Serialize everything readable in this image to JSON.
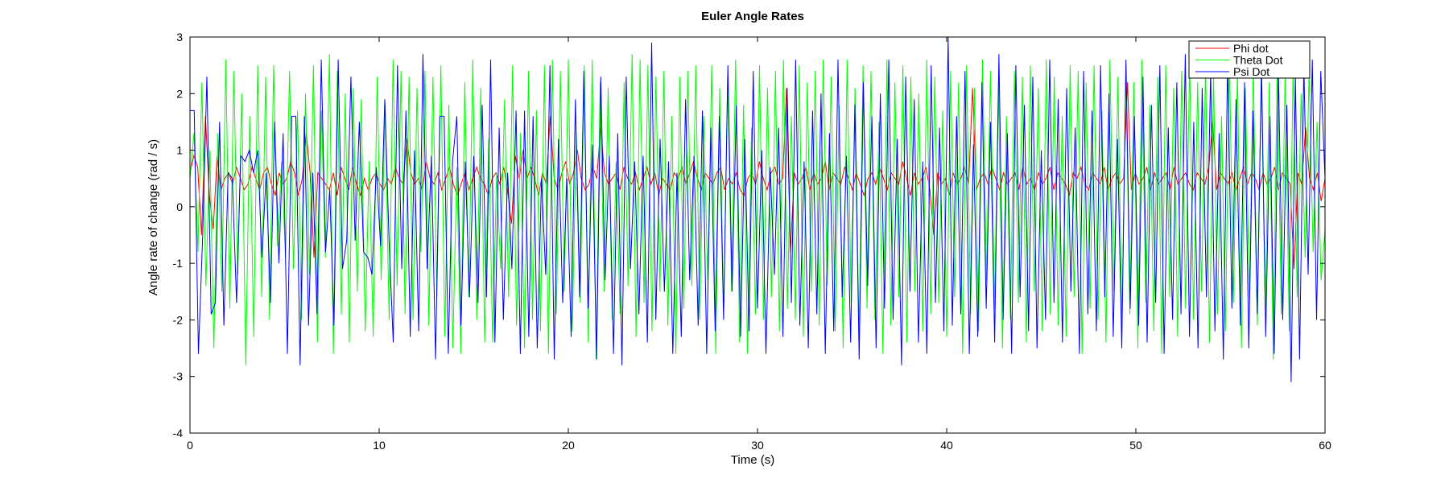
{
  "chart_data": {
    "type": "line",
    "title": "Euler Angle Rates",
    "xlabel": "Time (s)",
    "ylabel": "Angle rate of change (rad / s)",
    "xlim": [
      0,
      60
    ],
    "ylim": [
      -4,
      3
    ],
    "xticks": [
      0,
      10,
      20,
      30,
      40,
      50,
      60
    ],
    "xtick_labels": [
      "0",
      "10",
      "20",
      "30",
      "40",
      "50",
      "60"
    ],
    "yticks": [
      -4,
      -3,
      -2,
      -1,
      0,
      1,
      2,
      3
    ],
    "ytick_labels": [
      "-4",
      "-3",
      "-2",
      "-1",
      "0",
      "1",
      "2",
      "3"
    ],
    "grid": false,
    "legend_position": "top-right",
    "sample_interval": 0.2,
    "series": [
      {
        "name": "Phi dot",
        "color": "#ff0000",
        "values": [
          0.6,
          0.9,
          0.7,
          -0.5,
          1.6,
          0.2,
          -0.4,
          0.9,
          0.3,
          0.5,
          0.6,
          0.4,
          0.7,
          0.5,
          0.3,
          0.4,
          0.7,
          0.5,
          0.3,
          0.6,
          0.7,
          0.4,
          0.2,
          0.6,
          0.4,
          0.5,
          0.8,
          0.6,
          0.2,
          0.5,
          1.3,
          0.6,
          -0.9,
          0.6,
          0.5,
          0.4,
          0.3,
          0.6,
          0.2,
          0.7,
          0.5,
          0.3,
          0.7,
          0.4,
          0.2,
          0.5,
          0.3,
          0.5,
          0.6,
          0.4,
          0.3,
          0.5,
          0.4,
          0.7,
          0.5,
          0.4,
          1.2,
          0.6,
          0.4,
          0.5,
          0.3,
          0.8,
          0.5,
          0.4,
          0.6,
          0.3,
          0.5,
          0.7,
          0.4,
          0.2,
          0.4,
          0.6,
          0.3,
          0.5,
          0.7,
          0.5,
          0.4,
          0.2,
          0.5,
          0.6,
          0.4,
          0.7,
          0.3,
          -0.3,
          0.9,
          0.5,
          1.0,
          0.5,
          0.7,
          0.5,
          0.2,
          0.6,
          0.4,
          1.6,
          0.5,
          0.3,
          0.6,
          0.8,
          0.4,
          0.6,
          1.0,
          0.5,
          0.3,
          0.4,
          0.7,
          0.5,
          1.4,
          0.6,
          0.4,
          0.5,
          0.6,
          0.3,
          0.7,
          0.5,
          0.4,
          0.6,
          0.3,
          0.5,
          0.7,
          0.4,
          0.6,
          0.2,
          0.5,
          0.4,
          0.3,
          0.6,
          0.5,
          0.7,
          0.4,
          0.6,
          0.8,
          0.5,
          0.3,
          0.6,
          0.5,
          0.4,
          0.6,
          0.7,
          0.3,
          0.5,
          0.4,
          0.6,
          0.3,
          0.2,
          0.5,
          0.6,
          0.4,
          0.8,
          0.5,
          0.3,
          0.6,
          0.7,
          0.4,
          0.5,
          2.1,
          -0.8,
          0.6,
          0.4,
          0.5,
          0.7,
          0.3,
          0.6,
          0.4,
          0.5,
          0.8,
          0.3,
          0.6,
          0.5,
          0.4,
          0.7,
          0.5,
          0.3,
          0.6,
          0.4,
          0.2,
          0.5,
          0.6,
          0.4,
          0.7,
          0.5,
          0.3,
          0.6,
          0.5,
          0.4,
          0.8,
          0.5,
          0.2,
          0.6,
          0.4,
          0.5,
          0.7,
          0.3,
          -0.5,
          0.6,
          0.4,
          0.5,
          0.2,
          0.6,
          0.4,
          0.5,
          0.7,
          0.4,
          2.1,
          0.3,
          0.5,
          0.6,
          0.4,
          0.7,
          0.5,
          0.3,
          0.6,
          0.4,
          0.5,
          0.6,
          0.3,
          0.7,
          0.4,
          0.5,
          0.3,
          0.6,
          0.4,
          0.5,
          0.7,
          0.3,
          0.6,
          0.5,
          0.4,
          0.2,
          0.6,
          0.5,
          0.7,
          0.4,
          0.3,
          0.6,
          0.5,
          0.4,
          0.7,
          0.3,
          0.5,
          0.6,
          0.4,
          0.5,
          2.2,
          0.3,
          0.6,
          0.4,
          0.5,
          0.7,
          0.3,
          0.6,
          0.4,
          0.5,
          0.6,
          0.3,
          0.7,
          0.4,
          0.5,
          0.6,
          0.4,
          0.3,
          0.6,
          0.5,
          0.4,
          0.7,
          1.5,
          0.3,
          0.6,
          0.5,
          0.4,
          0.6,
          0.3,
          0.5,
          0.7,
          0.4,
          0.6,
          0.5,
          0.3,
          0.6,
          0.4,
          0.5,
          0.7,
          0.3,
          0.6,
          0.5,
          0.4,
          -1.1,
          0.6,
          0.4,
          1.4,
          0.5,
          0.3,
          0.6,
          0.1,
          0.5
        ]
      },
      {
        "name": "Theta Dot",
        "color": "#00ff00",
        "values": [
          0.5,
          1.3,
          -0.8,
          2.2,
          -1.4,
          1.0,
          -2.5,
          1.3,
          -1.5,
          2.6,
          -1.8,
          2.4,
          -1.2,
          2.0,
          -2.8,
          1.6,
          -2.3,
          2.5,
          -1.6,
          2.3,
          -2.0,
          2.5,
          -0.7,
          0.8,
          -0.9,
          2.4,
          -1.1,
          1.7,
          -2.0,
          2.0,
          -1.2,
          2.5,
          -2.4,
          1.7,
          -0.9,
          2.7,
          -2.6,
          2.4,
          -1.9,
          2.0,
          -2.4,
          2.1,
          -1.5,
          1.9,
          -2.2,
          0.8,
          -2.3,
          2.3,
          -1.3,
          1.8,
          -2.0,
          2.6,
          -1.4,
          2.4,
          -1.9,
          2.3,
          -2.0,
          2.1,
          -0.8,
          2.4,
          -2.1,
          2.3,
          -1.6,
          2.5,
          -2.3,
          1.8,
          -2.5,
          0.7,
          -2.6,
          2.2,
          -1.6,
          2.6,
          -2.0,
          2.1,
          -2.4,
          1.2,
          -2.4,
          0.6,
          -1.1,
          1.9,
          -1.6,
          2.5,
          -2.1,
          1.3,
          -2.5,
          2.4,
          -2.0,
          1.7,
          -2.2,
          2.5,
          -2.6,
          2.6,
          -1.9,
          2.4,
          -1.5,
          2.6,
          -2.2,
          1.3,
          -1.7,
          2.5,
          -2.4,
          2.6,
          -2.7,
          2.2,
          -1.5,
          2.1,
          -2.0,
          0.8,
          -1.9,
          2.2,
          -1.4,
          2.7,
          -2.3,
          2.6,
          -1.7,
          2.5,
          -2.2,
          2.3,
          -1.5,
          2.4,
          -2.1,
          1.6,
          -2.6,
          2.3,
          -1.8,
          2.4,
          -1.4,
          2.5,
          -2.0,
          1.6,
          -1.3,
          2.5,
          -2.6,
          2.1,
          -1.9,
          2.3,
          -1.5,
          2.6,
          -2.4,
          1.8,
          -2.6,
          1.4,
          -1.9,
          2.5,
          -2.0,
          2.1,
          -1.6,
          2.4,
          -2.2,
          2.6,
          -1.8,
          1.6,
          -2.0,
          2.5,
          -2.3,
          2.2,
          -1.5,
          2.4,
          -2.1,
          2.6,
          -1.4,
          2.3,
          -2.2,
          1.8,
          -2.5,
          2.6,
          -1.7,
          2.1,
          -2.3,
          2.5,
          -1.8,
          2.4,
          -2.0,
          1.5,
          -2.6,
          2.6,
          -2.1,
          2.2,
          -1.6,
          2.5,
          -2.4,
          2.3,
          -1.5,
          2.0,
          -2.2,
          2.6,
          -1.9,
          2.3,
          -1.7,
          1.7,
          -2.3,
          2.4,
          -1.6,
          2.2,
          -2.6,
          2.5,
          -1.9,
          2.1,
          -2.2,
          2.6,
          -1.3,
          2.4,
          -1.8,
          2.2,
          -2.5,
          1.6,
          -2.0,
          2.4,
          -1.7,
          2.3,
          -2.4,
          2.5,
          -1.5,
          2.1,
          -2.2,
          2.6,
          -1.9,
          2.3,
          -2.1,
          1.6,
          -2.3,
          2.5,
          -1.6,
          2.4,
          -2.6,
          2.2,
          -1.8,
          2.5,
          -2.0,
          1.7,
          -2.4,
          2.6,
          -1.5,
          2.3,
          -2.1,
          2.4,
          -1.9,
          2.2,
          -2.5,
          2.6,
          -1.7,
          1.8,
          -2.2,
          2.3,
          -2.6,
          2.5,
          -1.6,
          2.1,
          -2.3,
          2.4,
          -1.8,
          2.6,
          -2.0,
          2.2,
          -1.5,
          2.5,
          -2.4,
          2.3,
          -1.9,
          1.6,
          -2.2,
          2.6,
          -1.7,
          2.4,
          -2.5,
          2.1,
          -1.6,
          2.5,
          -2.1,
          2.3,
          -1.8,
          2.2,
          -2.7,
          2.6,
          -1.9,
          2.4,
          -2.2,
          2.5,
          -1.6,
          2.0,
          -0.9,
          2.4,
          -0.8,
          1.5,
          -1.3,
          -0.4
        ]
      },
      {
        "name": "Psi Dot",
        "color": "#0000ff",
        "values": [
          1.7,
          1.7,
          -2.6,
          -0.5,
          2.3,
          -1.9,
          -1.7,
          1.5,
          -2.1,
          0.6,
          0.5,
          -1.7,
          0.9,
          0.8,
          1.0,
          0.6,
          1.0,
          -0.9,
          0.6,
          -1.7,
          1.5,
          -1.0,
          1.3,
          -2.6,
          1.6,
          1.6,
          -2.8,
          1.6,
          -2.1,
          0.6,
          -1.9,
          2.6,
          -0.8,
          0.3,
          -2.1,
          2.6,
          -1.1,
          -0.6,
          2.3,
          -0.6,
          1.5,
          -0.8,
          -0.9,
          -1.2,
          0.7,
          -0.7,
          1.9,
          -0.6,
          -2.4,
          2.5,
          -1.1,
          1.7,
          -2.3,
          1.0,
          -2.2,
          2.7,
          -1.1,
          0.9,
          -2.7,
          1.6,
          1.6,
          -2.6,
          0.8,
          1.6,
          -2.1,
          0.8,
          -1.6,
          0.9,
          -1.7,
          1.8,
          -1.6,
          2.6,
          -2.4,
          1.4,
          -2.0,
          0.6,
          -1.1,
          1.7,
          -2.6,
          1.7,
          -2.3,
          1.6,
          -2.5,
          0.5,
          -1.2,
          2.5,
          -2.7,
          1.2,
          -1.7,
          0.5,
          -2.3,
          1.9,
          -1.6,
          2.4,
          -1.8,
          1.1,
          -2.7,
          2.3,
          -1.3,
          0.9,
          -2.6,
          1.3,
          -2.8,
          2.3,
          -1.1,
          0.8,
          -1.9,
          0.9,
          -2.4,
          2.9,
          -2.0,
          1.2,
          -1.5,
          0.8,
          -2.6,
          0.6,
          -2.3,
          1.9,
          -1.3,
          0.9,
          -2.1,
          1.7,
          -2.6,
          1.4,
          -2.2,
          1.6,
          -2.0,
          2.5,
          -1.5,
          1.8,
          -2.3,
          1.2,
          -2.2,
          2.4,
          -1.8,
          1.0,
          -2.6,
          0.7,
          -1.2,
          1.4,
          -2.3,
          2.1,
          -1.7,
          2.6,
          -2.1,
          0.8,
          -2.5,
          1.7,
          -1.9,
          2.0,
          -2.6,
          1.3,
          -2.2,
          2.6,
          -1.6,
          0.9,
          -2.4,
          1.8,
          -2.7,
          2.2,
          -1.4,
          1.6,
          -2.5,
          2.0,
          -1.8,
          2.6,
          -2.0,
          1.2,
          -2.8,
          2.3,
          -1.5,
          1.9,
          -2.4,
          0.8,
          -2.6,
          2.5,
          -1.7,
          1.4,
          -2.2,
          3.0,
          -2.1,
          1.6,
          -1.9,
          2.4,
          -2.6,
          1.1,
          -2.3,
          2.2,
          -1.8,
          1.5,
          -2.4,
          2.7,
          -2.0,
          1.3,
          -2.6,
          2.5,
          -1.6,
          1.8,
          -2.2,
          2.3,
          -2.5,
          1.0,
          -2.0,
          2.6,
          -1.7,
          1.9,
          -2.4,
          2.1,
          -1.5,
          1.4,
          -2.6,
          2.4,
          -1.9,
          1.7,
          -2.2,
          2.5,
          -1.6,
          2.0,
          -2.3,
          1.2,
          -2.5,
          2.6,
          -1.8,
          1.6,
          -2.1,
          2.3,
          -2.4,
          1.8,
          -1.7,
          2.5,
          -2.6,
          1.4,
          -2.0,
          2.2,
          -1.9,
          2.7,
          -2.3,
          1.5,
          -2.5,
          2.1,
          -1.6,
          2.4,
          -2.2,
          1.3,
          -2.7,
          2.6,
          -1.8,
          1.9,
          -2.1,
          2.2,
          -2.5,
          1.7,
          -1.9,
          2.5,
          -2.3,
          1.6,
          -2.6,
          2.4,
          -2.0,
          1.8,
          -3.1,
          2.3,
          -2.7,
          2.5,
          -1.2,
          2.6,
          -2.0,
          2.4,
          0.5
        ]
      }
    ]
  }
}
